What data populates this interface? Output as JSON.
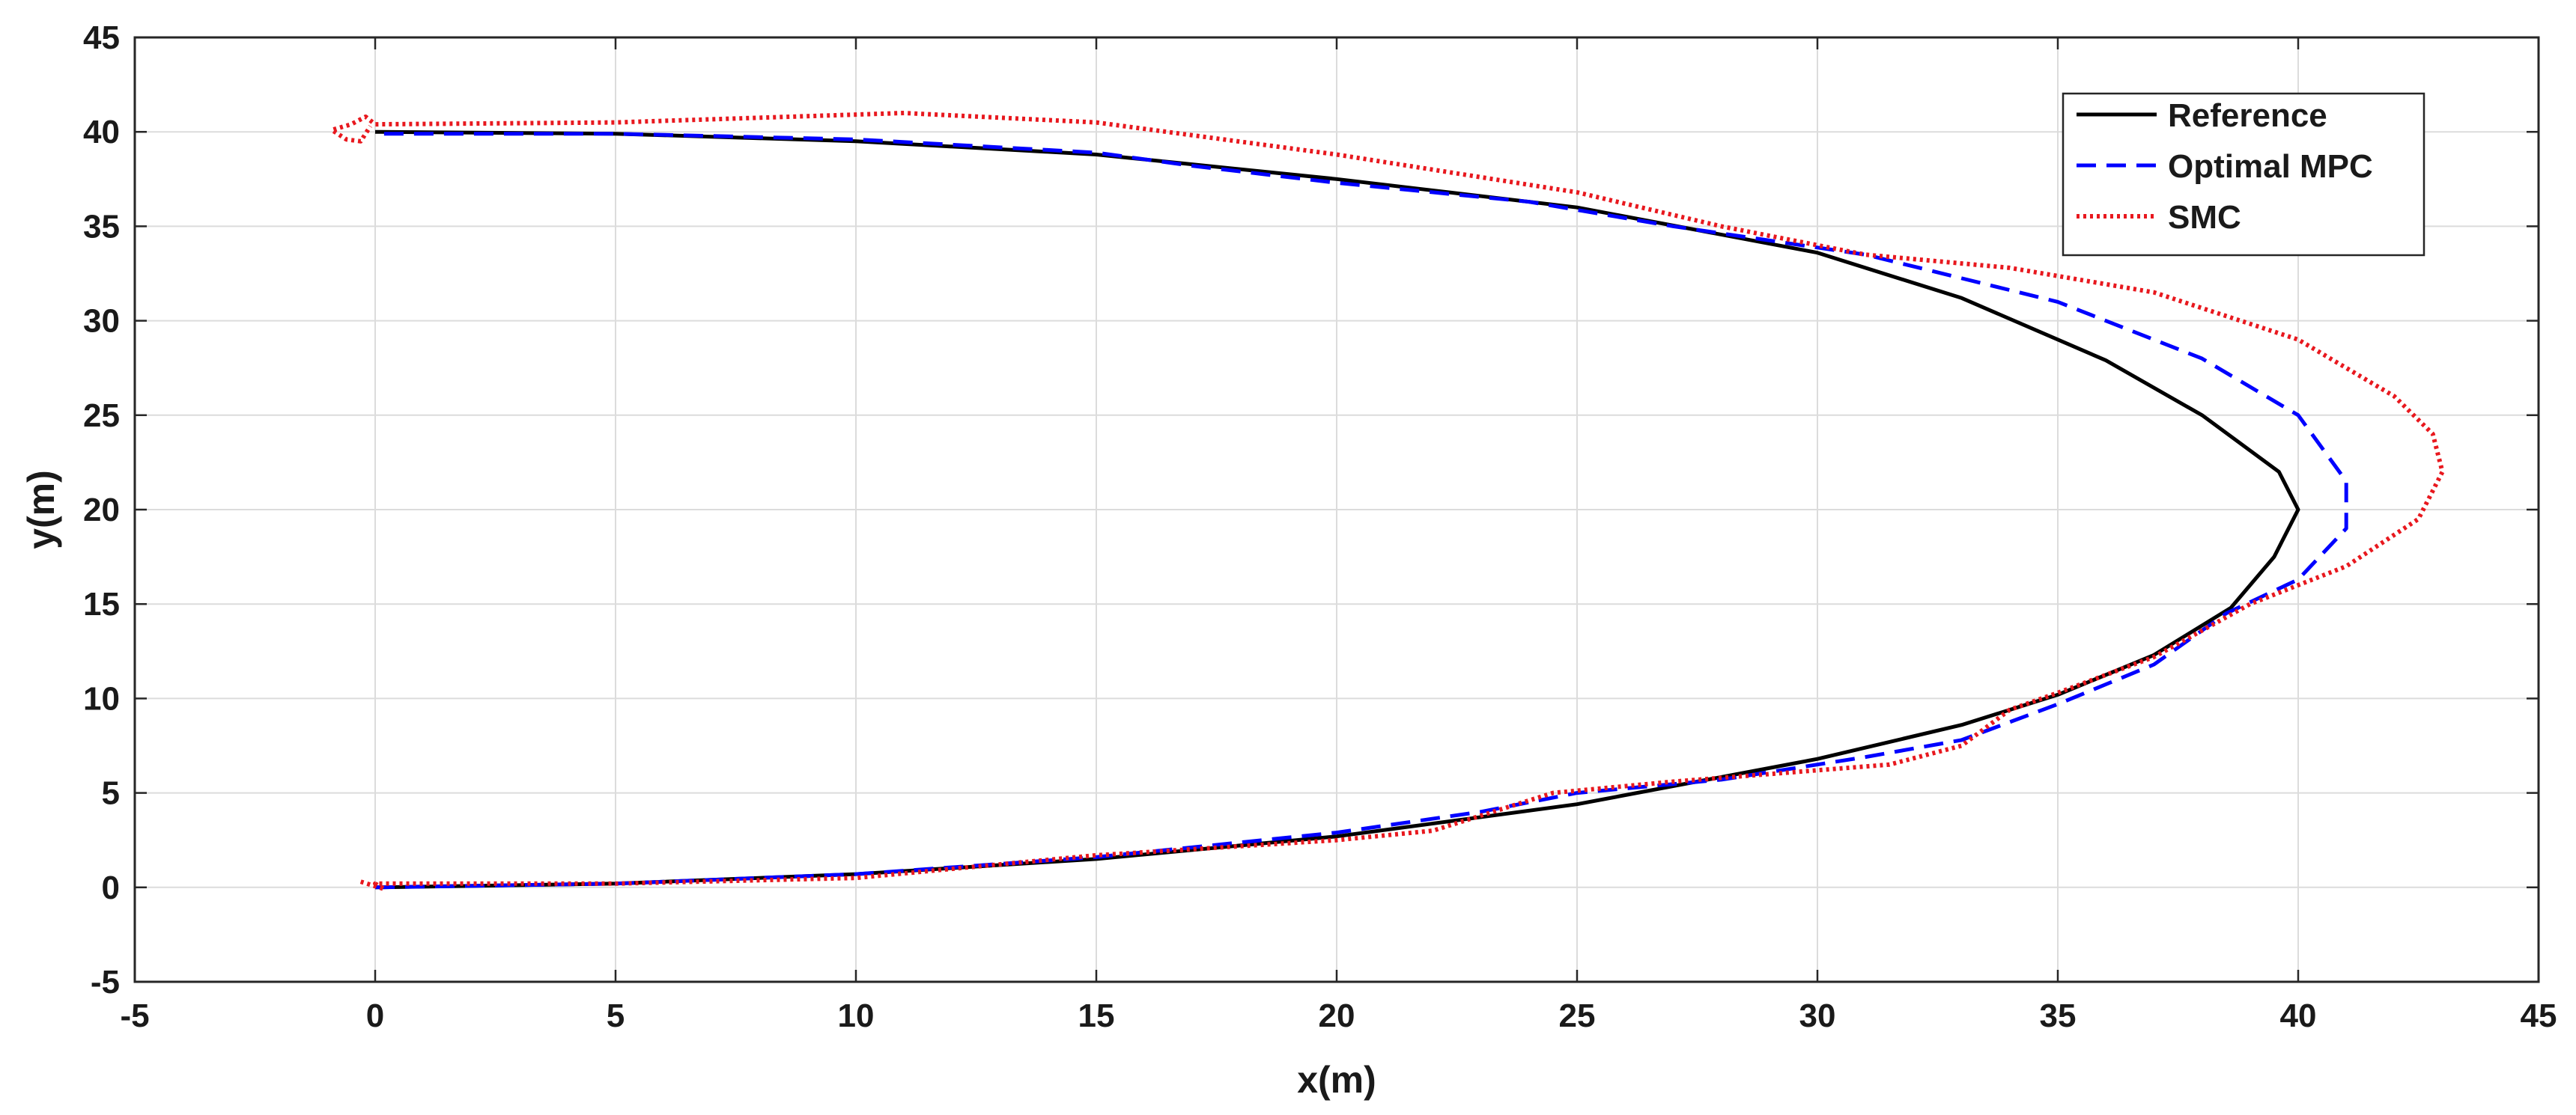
{
  "chart_data": {
    "type": "line",
    "title": "",
    "xlabel": "x(m)",
    "ylabel": "y(m)",
    "xlim": [
      -5,
      45
    ],
    "ylim": [
      -5,
      45
    ],
    "xticks": [
      -5,
      0,
      5,
      10,
      15,
      20,
      25,
      30,
      35,
      40,
      45
    ],
    "yticks": [
      -5,
      0,
      5,
      10,
      15,
      20,
      25,
      30,
      35,
      40,
      45
    ],
    "xtick_labels": [
      "-5",
      "0",
      "5",
      "10",
      "15",
      "20",
      "25",
      "30",
      "35",
      "40",
      "45"
    ],
    "ytick_labels": [
      "-5",
      "0",
      "5",
      "10",
      "15",
      "20",
      "25",
      "30",
      "35",
      "40",
      "45"
    ],
    "grid": true,
    "legend_position": "top-right",
    "series": [
      {
        "name": "Reference",
        "color": "#000000",
        "line_style": "solid",
        "points": [
          [
            0,
            0
          ],
          [
            5,
            0.2
          ],
          [
            10,
            0.7
          ],
          [
            15,
            1.5
          ],
          [
            20,
            2.7
          ],
          [
            25,
            4.4
          ],
          [
            30,
            6.8
          ],
          [
            33,
            8.6
          ],
          [
            35,
            10.2
          ],
          [
            37,
            12.3
          ],
          [
            38.6,
            14.8
          ],
          [
            39.5,
            17.5
          ],
          [
            40,
            20
          ],
          [
            39.6,
            22
          ],
          [
            38,
            25
          ],
          [
            36,
            27.9
          ],
          [
            33,
            31.2
          ],
          [
            30,
            33.6
          ],
          [
            25,
            36
          ],
          [
            20,
            37.5
          ],
          [
            15,
            38.8
          ],
          [
            10,
            39.5
          ],
          [
            5,
            39.9
          ],
          [
            0,
            40
          ]
        ]
      },
      {
        "name": "Optimal MPC",
        "color": "#0000ff",
        "line_style": "dashed",
        "points": [
          [
            0,
            0
          ],
          [
            5,
            0.2
          ],
          [
            10,
            0.7
          ],
          [
            15,
            1.6
          ],
          [
            20,
            2.9
          ],
          [
            23,
            4
          ],
          [
            25,
            5
          ],
          [
            28,
            5.7
          ],
          [
            31,
            6.9
          ],
          [
            33,
            7.8
          ],
          [
            35,
            9.7
          ],
          [
            37,
            11.8
          ],
          [
            38.5,
            14.5
          ],
          [
            40,
            16.3
          ],
          [
            41,
            19
          ],
          [
            41,
            21.5
          ],
          [
            40,
            25
          ],
          [
            38,
            28
          ],
          [
            35,
            31
          ],
          [
            31,
            33.5
          ],
          [
            27,
            35
          ],
          [
            24,
            36.3
          ],
          [
            20,
            37.3
          ],
          [
            17,
            38.2
          ],
          [
            15,
            38.9
          ],
          [
            10,
            39.6
          ],
          [
            5,
            39.9
          ],
          [
            0,
            39.9
          ]
        ]
      },
      {
        "name": "SMC",
        "color": "#e8181e",
        "line_style": "dotted",
        "points": [
          [
            -0.3,
            0.3
          ],
          [
            0.2,
            -0.1
          ],
          [
            0,
            0.2
          ],
          [
            5,
            0.2
          ],
          [
            10,
            0.5
          ],
          [
            15,
            1.7
          ],
          [
            20,
            2.5
          ],
          [
            22,
            3
          ],
          [
            24.5,
            5
          ],
          [
            27,
            5.6
          ],
          [
            29,
            6
          ],
          [
            31.5,
            6.5
          ],
          [
            33,
            7.5
          ],
          [
            34,
            9.4
          ],
          [
            35,
            10.3
          ],
          [
            37,
            12.2
          ],
          [
            39,
            15
          ],
          [
            41,
            17
          ],
          [
            42.5,
            19.5
          ],
          [
            43,
            22
          ],
          [
            42.8,
            24
          ],
          [
            42,
            26
          ],
          [
            40,
            29
          ],
          [
            37,
            31.5
          ],
          [
            34,
            32.8
          ],
          [
            31,
            33.5
          ],
          [
            28,
            35
          ],
          [
            25,
            36.8
          ],
          [
            20,
            38.8
          ],
          [
            15,
            40.5
          ],
          [
            11,
            41
          ],
          [
            5,
            40.5
          ],
          [
            0,
            40.4
          ],
          [
            -0.2,
            40.8
          ],
          [
            -0.5,
            40.4
          ],
          [
            -0.9,
            40.1
          ],
          [
            -0.6,
            39.6
          ],
          [
            -0.3,
            39.5
          ],
          [
            -0.1,
            40.3
          ]
        ]
      }
    ]
  }
}
